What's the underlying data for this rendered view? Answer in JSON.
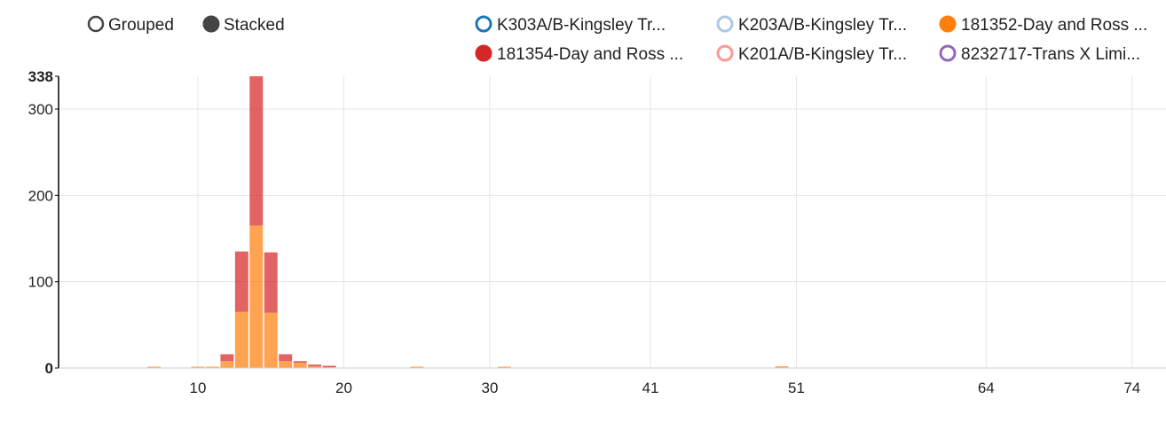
{
  "controls": [
    {
      "label": "Grouped",
      "selected": false
    },
    {
      "label": "Stacked",
      "selected": true
    }
  ],
  "legend": [
    {
      "label": "K303A/B-Kingsley Tr...",
      "color": "#1f77b4",
      "filled": false
    },
    {
      "label": "K203A/B-Kingsley Tr...",
      "color": "#aec7e8",
      "filled": false
    },
    {
      "label": "181352-Day and Ross ...",
      "color": "#ff7f0e",
      "filled": true
    },
    {
      "label": "181354-Day and Ross ...",
      "color": "#d62728",
      "filled": true
    },
    {
      "label": "K201A/B-Kingsley Tr...",
      "color": "#ff9896",
      "filled": false
    },
    {
      "label": "8232717-Trans X Limi...",
      "color": "#9467bd",
      "filled": false
    }
  ],
  "chart_data": {
    "type": "bar",
    "stacked": true,
    "categories": [
      4,
      5,
      6,
      7,
      8,
      9,
      10,
      11,
      12,
      13,
      14,
      15,
      16,
      17,
      18,
      19,
      20,
      21,
      22,
      23,
      24,
      25,
      26,
      27,
      28,
      29,
      30,
      31,
      32,
      33,
      34,
      35,
      36,
      37,
      38,
      39,
      40,
      41,
      42,
      43,
      44,
      45,
      46,
      47,
      48,
      49,
      50,
      51,
      52,
      53,
      54,
      55,
      56,
      57,
      58,
      59,
      60,
      61,
      62,
      63,
      64,
      65,
      66,
      67,
      68,
      69,
      70,
      71,
      72,
      73,
      74,
      75,
      76,
      77,
      78,
      79
    ],
    "series": [
      {
        "name": "181352-Day and Ross ...",
        "color": "#ff7f0e",
        "values": [
          0,
          0,
          0,
          1,
          0,
          0,
          1,
          1,
          8,
          65,
          165,
          64,
          8,
          6,
          2,
          1,
          0,
          0,
          0,
          0,
          0,
          1,
          0,
          0,
          0,
          0,
          0,
          1,
          0,
          0,
          0,
          0,
          0,
          0,
          0,
          0,
          0,
          0,
          0,
          0,
          0,
          0,
          0,
          0,
          0,
          0,
          2,
          0,
          0,
          0,
          0,
          0,
          0,
          0,
          0,
          0,
          0,
          0,
          0,
          0,
          0,
          0,
          0,
          0,
          0,
          0,
          0,
          0,
          0,
          0,
          0,
          0,
          0,
          0,
          0,
          0
        ]
      },
      {
        "name": "181354-Day and Ross ...",
        "color": "#d62728",
        "values": [
          0,
          0,
          0,
          0,
          0,
          0,
          0,
          0,
          8,
          70,
          173,
          70,
          8,
          2,
          2,
          1,
          0,
          0,
          0,
          0,
          0,
          0,
          0,
          0,
          0,
          0,
          0,
          0,
          0,
          0,
          0,
          0,
          0,
          0,
          0,
          0,
          0,
          0,
          0,
          0,
          0,
          0,
          0,
          0,
          0,
          0,
          0,
          0,
          0,
          0,
          0,
          0,
          0,
          0,
          0,
          0,
          0,
          0,
          0,
          0,
          0,
          0,
          0,
          0,
          0,
          0,
          0,
          0,
          0,
          0,
          0,
          0,
          0,
          0,
          0,
          0
        ]
      }
    ],
    "x_tick_labels": [
      "10",
      "20",
      "30",
      "41",
      "51",
      "64",
      "74"
    ],
    "x_tick_positions": [
      10,
      20,
      30,
      41,
      51,
      64,
      74
    ],
    "y_ticks": [
      0,
      100,
      200,
      300,
      338
    ],
    "ylim": [
      0,
      338
    ],
    "grid": true,
    "legend_position": "top"
  }
}
